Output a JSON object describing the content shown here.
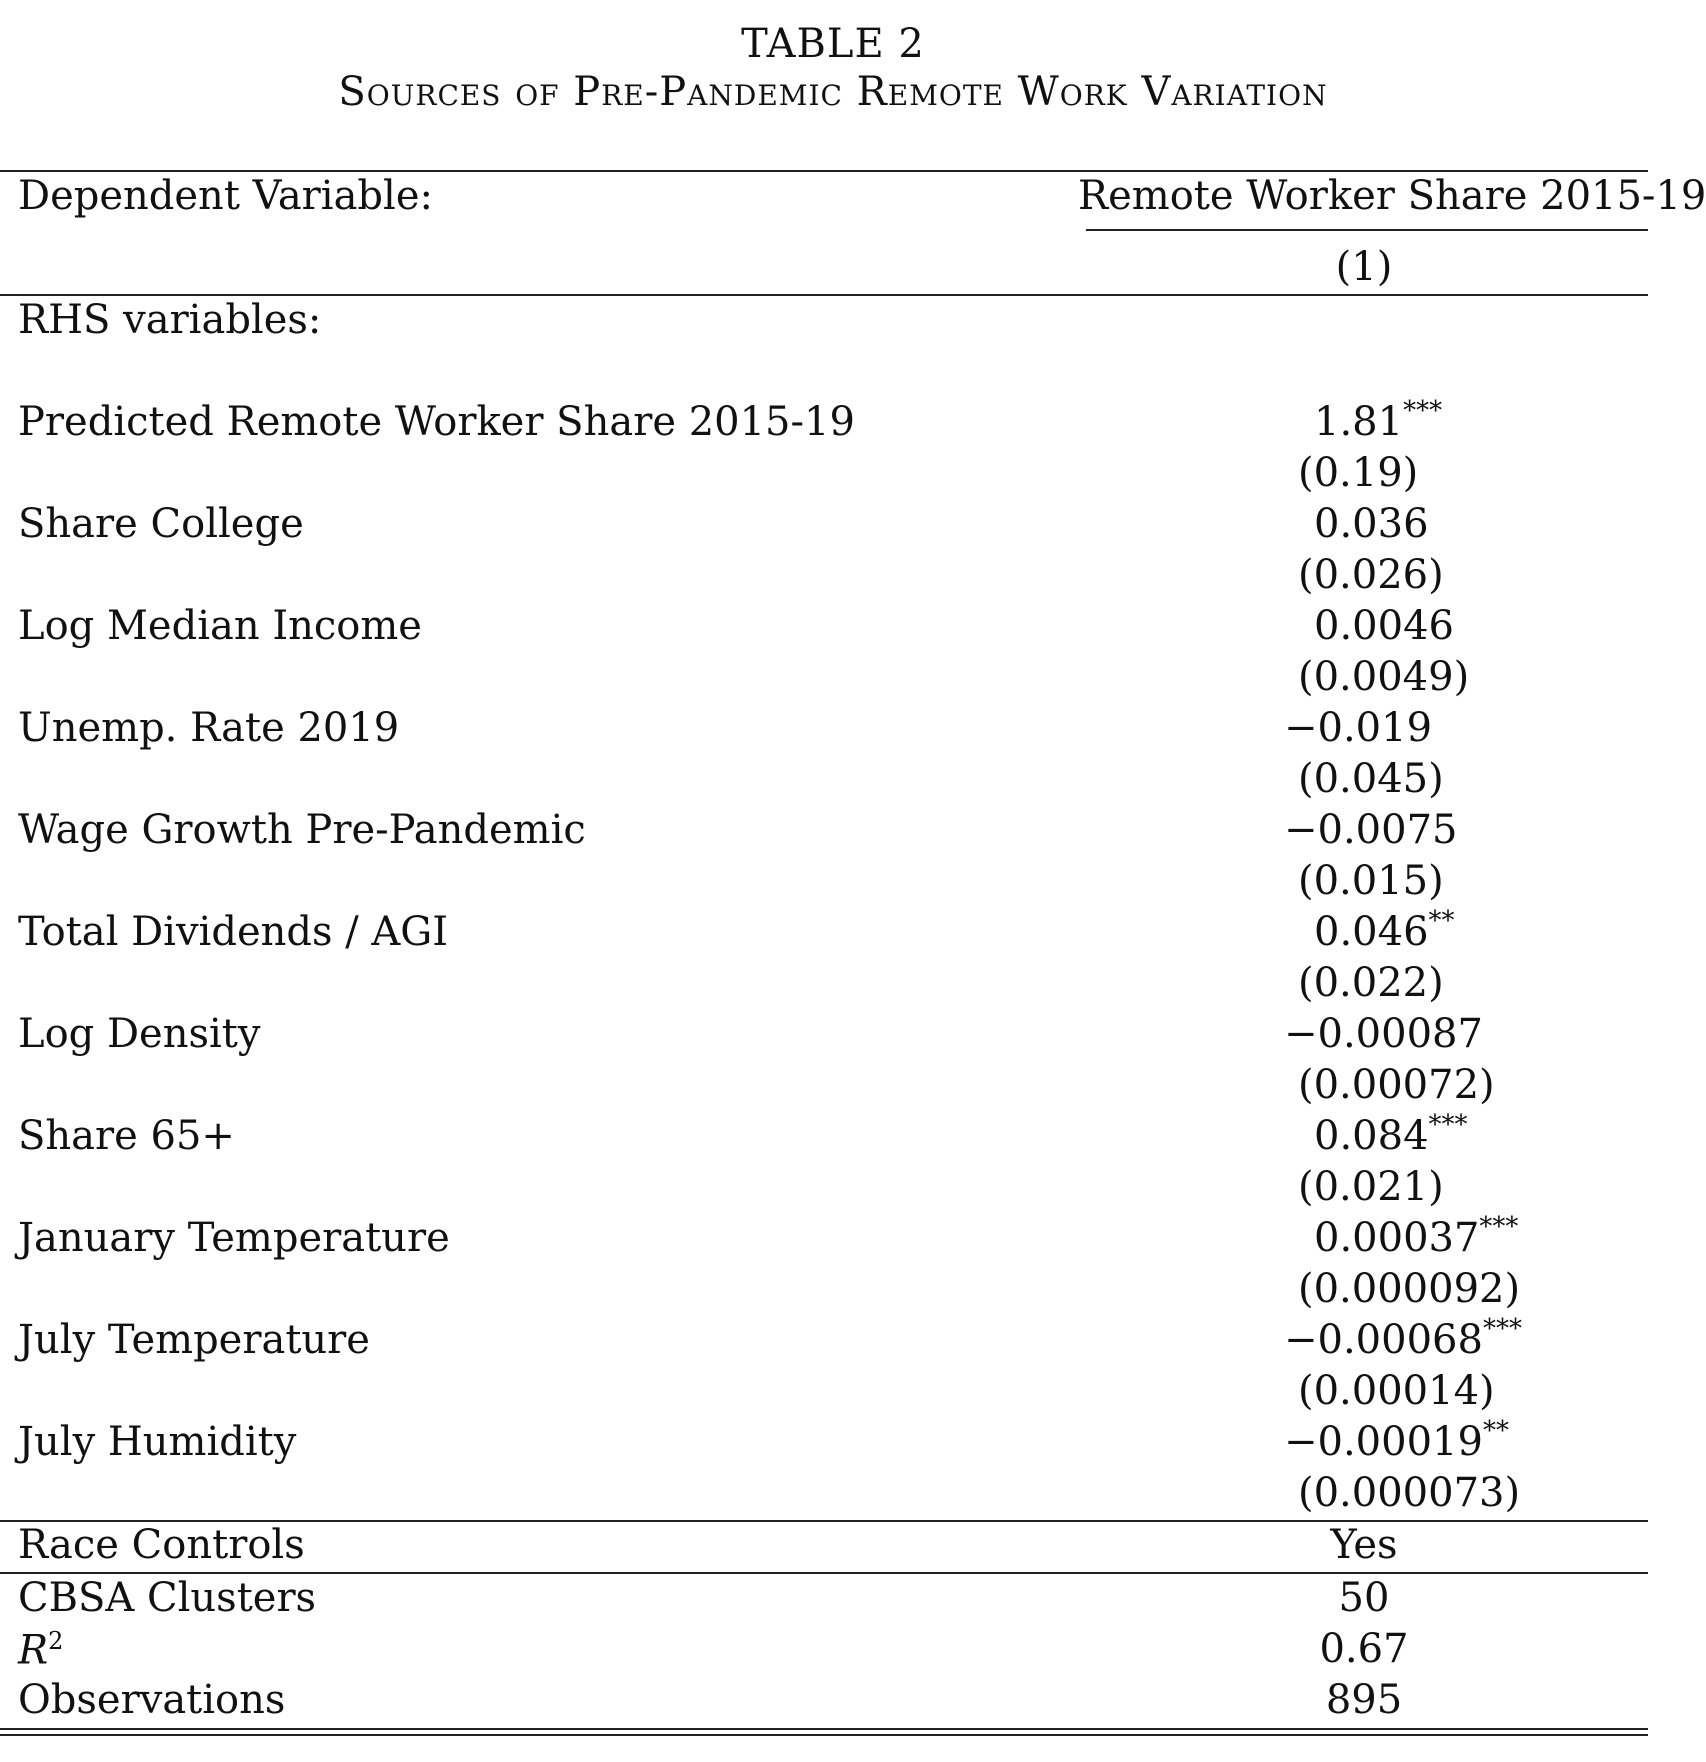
{
  "table": {
    "title": "TABLE 2",
    "subtitle": "Sources of Pre-Pandemic Remote Work Variation",
    "dependent_label": "Dependent Variable:",
    "dependent_value": "Remote Worker Share 2015-19",
    "column_number": "(1)",
    "rhs_label": "RHS variables:",
    "rows": [
      {
        "label": "Predicted Remote Worker Share 2015-19",
        "coef": "1.81",
        "stars": "***",
        "se": "(0.19)"
      },
      {
        "label": "Share College",
        "coef": "0.036",
        "stars": "",
        "se": "(0.026)"
      },
      {
        "label": "Log Median Income",
        "coef": "0.0046",
        "stars": "",
        "se": "(0.0049)"
      },
      {
        "label": "Unemp. Rate 2019",
        "coef": "−0.019",
        "stars": "",
        "se": "(0.045)"
      },
      {
        "label": "Wage Growth Pre-Pandemic",
        "coef": "−0.0075",
        "stars": "",
        "se": "(0.015)"
      },
      {
        "label": "Total Dividends / AGI",
        "coef": "0.046",
        "stars": "**",
        "se": "(0.022)"
      },
      {
        "label": "Log Density",
        "coef": "−0.00087",
        "stars": "",
        "se": "(0.00072)"
      },
      {
        "label": "Share 65+",
        "coef": "0.084",
        "stars": "***",
        "se": "(0.021)"
      },
      {
        "label": "January Temperature",
        "coef": "0.00037",
        "stars": "***",
        "se": "(0.000092)"
      },
      {
        "label": "July Temperature",
        "coef": "−0.00068",
        "stars": "***",
        "se": "(0.00014)"
      },
      {
        "label": "July Humidity",
        "coef": "−0.00019",
        "stars": "**",
        "se": "(0.000073)"
      }
    ],
    "race_controls_label": "Race Controls",
    "race_controls_value": "Yes",
    "clusters_label": "CBSA Clusters",
    "clusters_value": "50",
    "r2_label": "R",
    "r2_sup": "2",
    "r2_value": "0.67",
    "obs_label": "Observations",
    "obs_value": "895"
  }
}
